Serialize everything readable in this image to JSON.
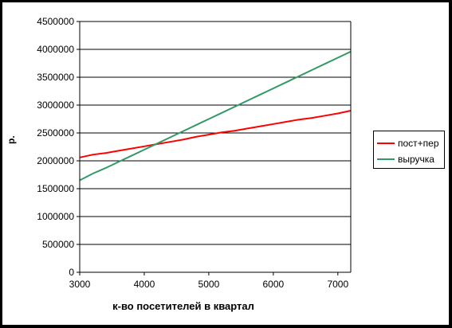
{
  "chart_data": {
    "type": "line",
    "title": "",
    "xlabel": "к-во посетителей в квартал",
    "ylabel": "р.",
    "xlim": [
      3000,
      7200
    ],
    "ylim": [
      0,
      4500000
    ],
    "xticks": [
      3000,
      4000,
      5000,
      6000,
      7000
    ],
    "yticks": [
      0,
      500000,
      1000000,
      1500000,
      2000000,
      2500000,
      3000000,
      3500000,
      4000000,
      4500000
    ],
    "grid": "horizontal",
    "legend_position": "right",
    "series": [
      {
        "name": "пост+пер",
        "color": "#ff0000",
        "x": [
          3000,
          3200,
          3400,
          3600,
          3800,
          4000,
          4200,
          4400,
          4600,
          4800,
          5000,
          5200,
          5400,
          5600,
          5800,
          6000,
          6200,
          6400,
          6600,
          6800,
          7000,
          7200
        ],
        "y": [
          2060000,
          2110000,
          2140000,
          2180000,
          2220000,
          2260000,
          2300000,
          2340000,
          2380000,
          2430000,
          2470000,
          2510000,
          2540000,
          2580000,
          2620000,
          2660000,
          2700000,
          2740000,
          2770000,
          2810000,
          2850000,
          2900000
        ]
      },
      {
        "name": "выручка",
        "color": "#339966",
        "x": [
          3000,
          3200,
          3400,
          3600,
          3800,
          4000,
          4200,
          4400,
          4600,
          4800,
          5000,
          5200,
          5400,
          5600,
          5800,
          6000,
          6200,
          6400,
          6600,
          6800,
          7000,
          7200
        ],
        "y": [
          1650000,
          1770000,
          1870000,
          1980000,
          2090000,
          2200000,
          2310000,
          2420000,
          2530000,
          2640000,
          2750000,
          2860000,
          2970000,
          3080000,
          3190000,
          3300000,
          3410000,
          3520000,
          3630000,
          3740000,
          3850000,
          3960000
        ]
      }
    ]
  }
}
